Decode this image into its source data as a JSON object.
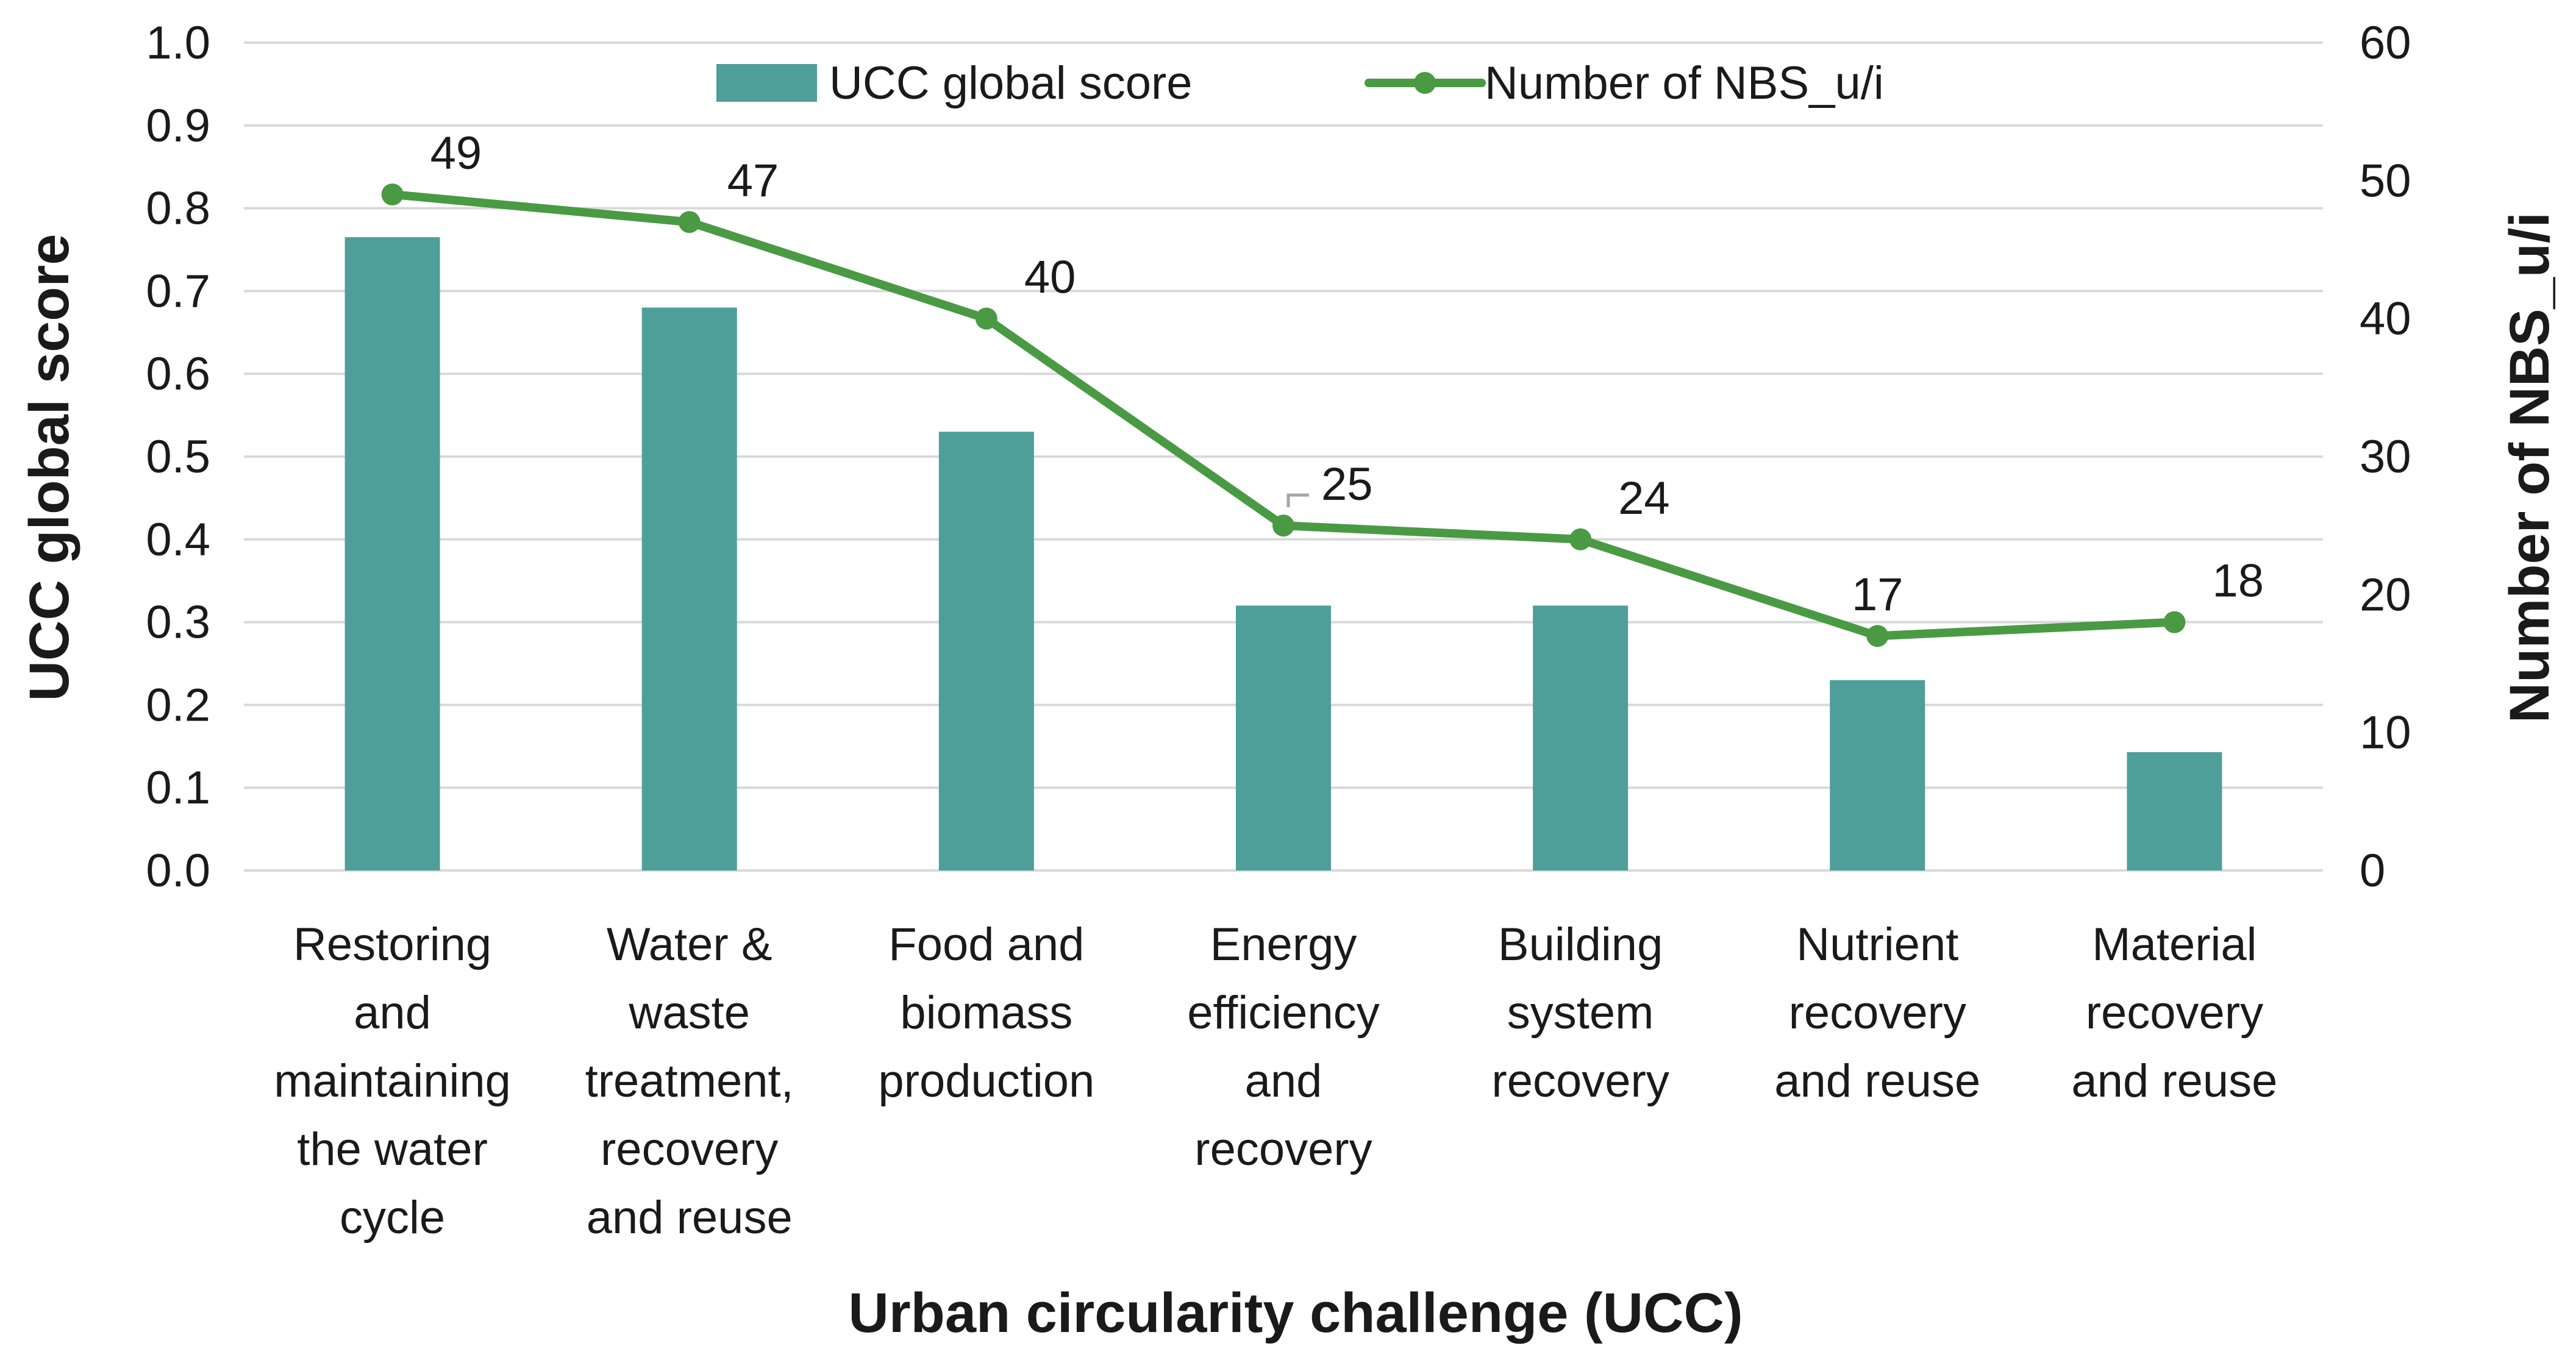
{
  "chart_data": {
    "type": "bar+line",
    "title": "",
    "xlabel": "Urban circularity challenge (UCC)",
    "ylabel": "UCC global score",
    "y2label": "Number of NBS_u/i",
    "ylim": [
      0,
      1.0
    ],
    "y2lim": [
      0,
      60
    ],
    "yticks": [
      "0.0",
      "0.1",
      "0.2",
      "0.3",
      "0.4",
      "0.5",
      "0.6",
      "0.7",
      "0.8",
      "0.9",
      "1.0"
    ],
    "y2ticks": [
      "0",
      "10",
      "20",
      "30",
      "40",
      "50",
      "60"
    ],
    "grid": true,
    "legend_position": "top-center",
    "categories": [
      [
        "Restoring",
        "and",
        "maintaining",
        "the water",
        "cycle"
      ],
      [
        "Water &",
        "waste",
        "treatment,",
        "recovery",
        "and reuse"
      ],
      [
        "Food and",
        "biomass",
        "production"
      ],
      [
        "Energy",
        "efficiency",
        "and",
        "recovery"
      ],
      [
        "Building",
        "system",
        "recovery"
      ],
      [
        "Nutrient",
        "recovery",
        "and reuse"
      ],
      [
        "Material",
        "recovery",
        "and reuse"
      ]
    ],
    "series": [
      {
        "name": "UCC global score",
        "type": "bar",
        "axis": "left",
        "color": "#4e9e9a",
        "values": [
          0.765,
          0.68,
          0.53,
          0.32,
          0.32,
          0.23,
          0.143
        ]
      },
      {
        "name": "Number of NBS_u/i",
        "type": "line",
        "axis": "right",
        "color": "#4a9a44",
        "values": [
          49,
          47,
          40,
          25,
          24,
          17,
          18
        ],
        "labels": [
          "49",
          "47",
          "40",
          "25",
          "24",
          "17",
          "18"
        ]
      }
    ]
  }
}
